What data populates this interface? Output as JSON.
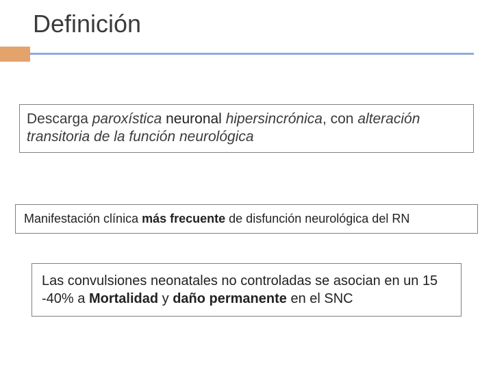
{
  "slide": {
    "title": "Definición",
    "accent_color": "#e3a36b",
    "rule_color": "#8faadc",
    "background_color": "#ffffff",
    "title_color": "#3b3b3b",
    "title_fontsize": 36,
    "box_border_color": "#808080",
    "box1": {
      "segments": [
        {
          "text": "Descarga ",
          "style": "plain"
        },
        {
          "text": "paroxística ",
          "style": "italic"
        },
        {
          "text": "neuronal ",
          "style": "bold2"
        },
        {
          "text": "hipersincrónica",
          "style": "italic"
        },
        {
          "text": ", con ",
          "style": "plain"
        },
        {
          "text": "alteración transitoria de la función neurológica",
          "style": "italic"
        }
      ],
      "fontsize": 21
    },
    "box2": {
      "pre": "Manifestación clínica ",
      "bold": "más frecuente",
      "post": " de disfunción neurológica del RN",
      "fontsize": 18
    },
    "box3": {
      "pre": "Las convulsiones neonatales no controladas se asocian en un 15 -40% a ",
      "bold1": "Mortalidad",
      "mid": " y ",
      "bold2": "daño permanente",
      "post": " en el SNC",
      "fontsize": 20
    }
  }
}
